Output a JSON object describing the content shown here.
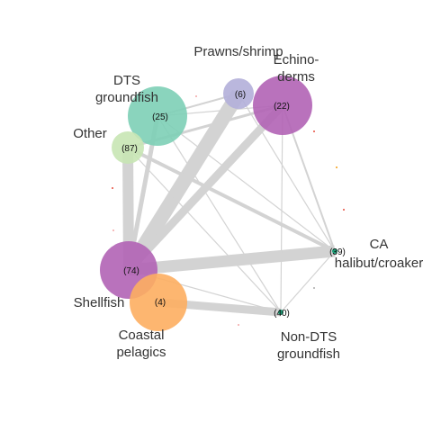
{
  "diagram": {
    "type": "network",
    "nodes": [
      {
        "id": "prawns",
        "count": "(6)",
        "label_lines": [
          "Prawns/shrimp"
        ],
        "color": "#b3afd9"
      },
      {
        "id": "echinoderms",
        "count": "(22)",
        "label_lines": [
          "Echino-",
          "derms"
        ],
        "color": "#b163b5"
      },
      {
        "id": "dts",
        "count": "(25)",
        "label_lines": [
          "DTS",
          "groundfish"
        ],
        "color": "#7dcfb6"
      },
      {
        "id": "other",
        "count": "(87)",
        "label_lines": [
          "Other"
        ],
        "color": "#c8e6b4"
      },
      {
        "id": "ca_halibut",
        "count": "(39)",
        "label_lines": [
          "CA",
          "halibut/croaker"
        ],
        "color": "#1b9e77"
      },
      {
        "id": "shellfish",
        "count": "(74)",
        "label_lines": [
          "Shellfish"
        ],
        "color": "#b163b5"
      },
      {
        "id": "coastal",
        "count": "(4)",
        "label_lines": [
          "Coastal",
          "pelagics"
        ],
        "color": "#fdae61"
      },
      {
        "id": "non_dts",
        "count": "(40)",
        "label_lines": [
          "Non-DTS",
          "groundfish"
        ],
        "color": "#1b9e77"
      }
    ],
    "edge_color": "#d3d3d3"
  }
}
